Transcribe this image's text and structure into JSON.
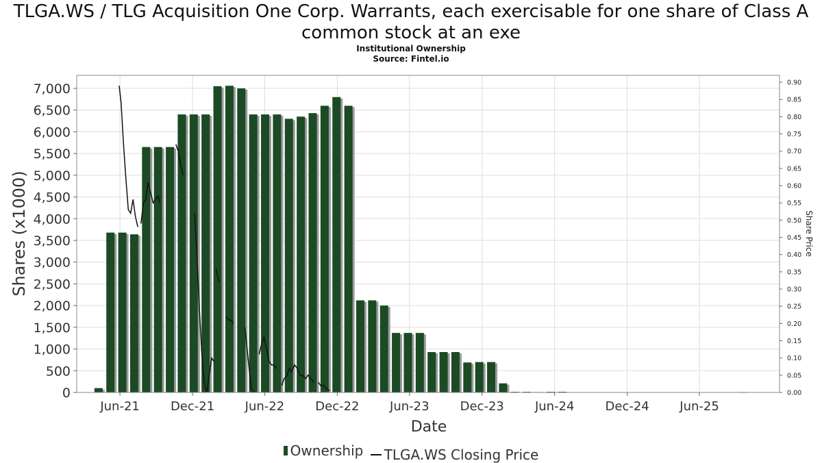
{
  "header": {
    "title": "TLGA.WS / TLG Acquisition One Corp. Warrants, each exercisable for one share of Class A common stock at an exe",
    "subtitle1": "Institutional Ownership",
    "subtitle2": "Source: Fintel.io"
  },
  "legend": {
    "ownership": "Ownership",
    "price": "TLGA.WS Closing Price"
  },
  "chart_data": {
    "type": "bar",
    "xlabel": "Date",
    "ylabel": "Shares (x1000)",
    "y2label": "Share Price",
    "ylim": [
      0,
      7300
    ],
    "y2lim": [
      0,
      0.92
    ],
    "xlim": [
      "2021-02-12",
      "2025-12-20"
    ],
    "grid": true,
    "legend_position": "bottom",
    "y_ticks": [
      0,
      500,
      1000,
      1500,
      2000,
      2500,
      3000,
      3500,
      4000,
      4500,
      5000,
      5500,
      6000,
      6500,
      7000
    ],
    "y_tick_labels": [
      "0",
      "500",
      "1,000",
      "1,500",
      "2,000",
      "2,500",
      "3,000",
      "3,500",
      "4,000",
      "4,500",
      "5,000",
      "5,500",
      "6,000",
      "6,500",
      "7,000"
    ],
    "y2_ticks": [
      0.0,
      0.05,
      0.1,
      0.15,
      0.2,
      0.25,
      0.3,
      0.35,
      0.4,
      0.45,
      0.5,
      0.55,
      0.6,
      0.65,
      0.7,
      0.75,
      0.8,
      0.85,
      0.9
    ],
    "y2_tick_labels": [
      "0.00",
      "0.05",
      "0.10",
      "0.15",
      "0.20",
      "0.25",
      "0.30",
      "0.35",
      "0.40",
      "0.45",
      "0.50",
      "0.55",
      "0.60",
      "0.65",
      "0.70",
      "0.75",
      "0.80",
      "0.85",
      "0.90"
    ],
    "x_ticks": [
      "2021-06-01",
      "2021-12-01",
      "2022-06-01",
      "2022-12-01",
      "2023-06-01",
      "2023-12-01",
      "2024-06-01",
      "2024-12-01",
      "2025-06-01"
    ],
    "x_tick_labels": [
      "Jun-21",
      "Dec-21",
      "Jun-22",
      "Dec-22",
      "Jun-23",
      "Dec-23",
      "Jun-24",
      "Dec-24",
      "Jun-25"
    ],
    "colors": {
      "bar": "#1b4a25",
      "bar_shadow": "#9a9a9a",
      "line": "#111111",
      "grid": "#dddddd"
    },
    "series": [
      {
        "name": "Ownership",
        "kind": "bar",
        "dates": [
          "2021-04-08",
          "2021-05-08",
          "2021-06-07",
          "2021-07-07",
          "2021-08-06",
          "2021-09-05",
          "2021-10-05",
          "2021-11-04",
          "2021-12-04",
          "2022-01-03",
          "2022-02-02",
          "2022-03-04",
          "2022-04-03",
          "2022-05-03",
          "2022-06-02",
          "2022-07-02",
          "2022-08-01",
          "2022-08-31",
          "2022-09-30",
          "2022-10-30",
          "2022-11-29",
          "2022-12-29",
          "2023-01-28",
          "2023-02-27",
          "2023-03-29",
          "2023-04-28",
          "2023-05-28",
          "2023-06-27",
          "2023-07-27",
          "2023-08-26",
          "2023-09-25",
          "2023-10-25",
          "2023-11-24",
          "2023-12-24",
          "2024-01-23",
          "2024-02-22",
          "2024-03-23",
          "2024-04-22",
          "2024-05-22",
          "2024-06-21",
          "2025-09-18"
        ],
        "values": [
          100,
          3680,
          3680,
          3640,
          5650,
          5650,
          5650,
          6400,
          6400,
          6400,
          7050,
          7060,
          7000,
          6400,
          6400,
          6400,
          6300,
          6350,
          6430,
          6600,
          6800,
          6600,
          2120,
          2120,
          2000,
          1370,
          1370,
          1370,
          930,
          930,
          930,
          690,
          700,
          700,
          210,
          15,
          15,
          10,
          0,
          0,
          10
        ]
      },
      {
        "name": "TLGA.WS Closing Price",
        "kind": "line",
        "segments": [
          {
            "dates": [
              "2021-05-30",
              "2021-06-04",
              "2021-06-10",
              "2021-06-16",
              "2021-06-22",
              "2021-06-28",
              "2021-07-04",
              "2021-07-10",
              "2021-07-16"
            ],
            "values": [
              0.89,
              0.84,
              0.72,
              0.62,
              0.53,
              0.52,
              0.56,
              0.51,
              0.48
            ]
          },
          {
            "dates": [
              "2021-07-24",
              "2021-07-30",
              "2021-08-05",
              "2021-08-11",
              "2021-08-17",
              "2021-08-24",
              "2021-08-30",
              "2021-09-05",
              "2021-09-10"
            ],
            "values": [
              0.49,
              0.55,
              0.56,
              0.61,
              0.58,
              0.55,
              0.56,
              0.57,
              0.55
            ]
          },
          {
            "dates": [
              "2021-10-20",
              "2021-10-26",
              "2021-11-01",
              "2021-11-07"
            ],
            "values": [
              0.72,
              0.7,
              0.66,
              0.63
            ]
          },
          {
            "dates": [
              "2021-12-06",
              "2021-12-12",
              "2021-12-18",
              "2021-12-24",
              "2021-12-30",
              "2022-01-06",
              "2022-01-12",
              "2022-01-18",
              "2022-01-24"
            ],
            "values": [
              0.52,
              0.4,
              0.25,
              0.12,
              0.03,
              0.0,
              0.05,
              0.1,
              0.09
            ]
          },
          {
            "dates": [
              "2022-01-29",
              "2022-02-02",
              "2022-02-06"
            ],
            "values": [
              0.36,
              0.34,
              0.32
            ]
          },
          {
            "dates": [
              "2022-02-24",
              "2022-03-02",
              "2022-03-08",
              "2022-03-14"
            ],
            "values": [
              0.22,
              0.21,
              0.21,
              0.2
            ]
          },
          {
            "dates": [
              "2022-04-12",
              "2022-04-20",
              "2022-04-28",
              "2022-05-06"
            ],
            "values": [
              0.19,
              0.1,
              0.01,
              0.0
            ]
          },
          {
            "dates": [
              "2022-05-18",
              "2022-05-24",
              "2022-05-30",
              "2022-06-05",
              "2022-06-12",
              "2022-06-18",
              "2022-06-24",
              "2022-06-30"
            ],
            "values": [
              0.11,
              0.14,
              0.16,
              0.13,
              0.09,
              0.08,
              0.08,
              0.07
            ]
          },
          {
            "dates": [
              "2022-07-14",
              "2022-07-20",
              "2022-07-27",
              "2022-08-02",
              "2022-08-08",
              "2022-08-15",
              "2022-08-22",
              "2022-08-29",
              "2022-09-05",
              "2022-09-12",
              "2022-09-18",
              "2022-09-25",
              "2022-10-02"
            ],
            "values": [
              0.02,
              0.04,
              0.05,
              0.07,
              0.06,
              0.08,
              0.07,
              0.05,
              0.05,
              0.04,
              0.05,
              0.04,
              0.03
            ]
          },
          {
            "dates": [
              "2022-10-14",
              "2022-10-20",
              "2022-10-28",
              "2022-11-04",
              "2022-11-12"
            ],
            "values": [
              0.03,
              0.02,
              0.02,
              0.01,
              0.005
            ]
          }
        ]
      }
    ]
  }
}
